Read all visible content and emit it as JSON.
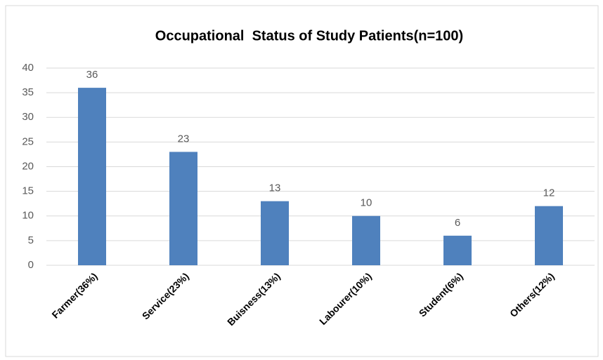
{
  "chart_data": {
    "type": "bar",
    "title": "Occupational  Status of Study Patients(n=100)",
    "categories": [
      "Farmer(36%)",
      "Service(23%)",
      "Buisness(13%)",
      "Labourer(10%)",
      "Student(6%)",
      "Others(12%)"
    ],
    "values": [
      36,
      23,
      13,
      10,
      6,
      12
    ],
    "color": "#4f81bd",
    "ylim": [
      0,
      40
    ],
    "yticks": [
      0,
      5,
      10,
      15,
      20,
      25,
      30,
      35,
      40
    ],
    "grid": true,
    "data_labels": true
  }
}
